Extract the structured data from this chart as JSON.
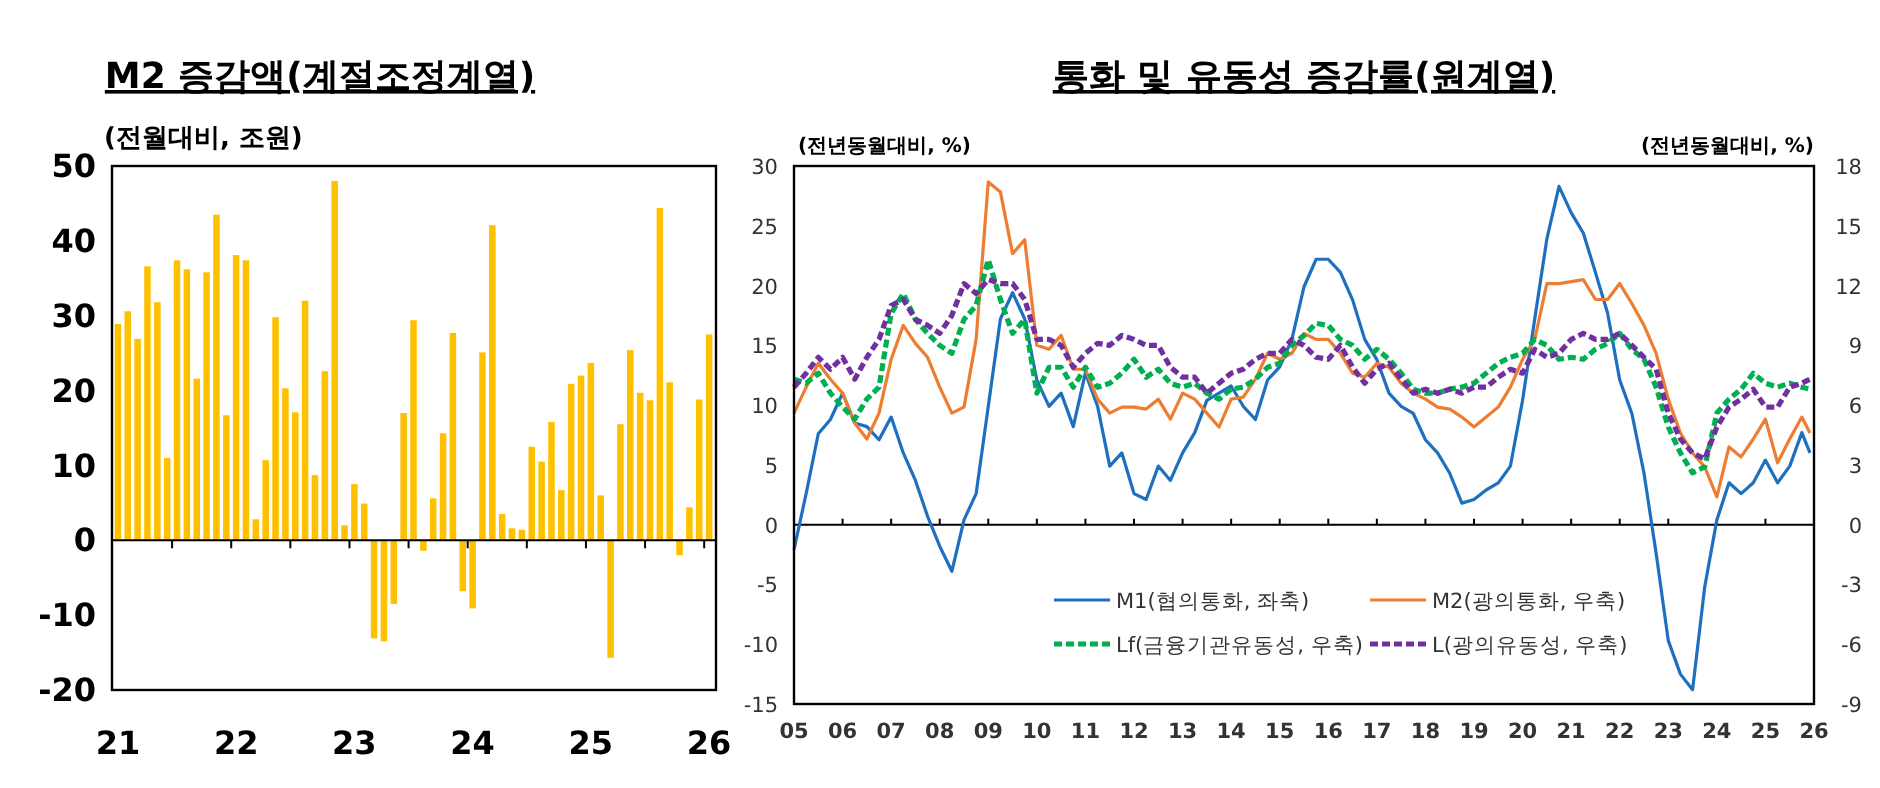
{
  "chart_data": [
    {
      "type": "bar",
      "title": "M2 증감액(계절조정계열)",
      "ylabel": "(전월대비, 조원)",
      "color": "#ffc000",
      "ylim": [
        -20,
        50
      ],
      "yticks": [
        -20,
        -10,
        0,
        10,
        20,
        30,
        40,
        50
      ],
      "categories": [
        "21",
        null,
        null,
        null,
        null,
        null,
        null,
        null,
        null,
        null,
        null,
        null,
        "22",
        null,
        null,
        null,
        null,
        null,
        null,
        null,
        null,
        null,
        null,
        null,
        "23",
        null,
        null,
        null,
        null,
        null,
        null,
        null,
        null,
        null,
        null,
        null,
        "24",
        null,
        null,
        null,
        null,
        null,
        null,
        null,
        null,
        null,
        null,
        null,
        "25",
        null,
        null,
        null,
        null,
        null,
        null,
        null,
        null,
        null,
        null,
        null,
        "26"
      ],
      "values": [
        28.9,
        30.6,
        26.9,
        36.6,
        31.8,
        11.0,
        37.4,
        36.2,
        21.6,
        35.8,
        43.5,
        16.7,
        38.1,
        37.4,
        2.8,
        10.7,
        29.8,
        20.3,
        17.1,
        32.0,
        8.7,
        22.6,
        48.0,
        2.0,
        7.5,
        4.9,
        -13.1,
        -13.5,
        -8.5,
        17.0,
        29.4,
        -1.4,
        5.6,
        14.3,
        27.7,
        -6.8,
        -9.1,
        25.1,
        42.1,
        3.5,
        1.6,
        1.4,
        12.5,
        10.5,
        15.8,
        6.7,
        20.9,
        22.0,
        23.7,
        6.0,
        -15.7,
        15.5,
        25.4,
        19.7,
        18.7,
        44.4,
        21.1,
        -2.0,
        4.4,
        18.8,
        27.5
      ]
    },
    {
      "type": "line",
      "title": "통화 및 유동성 증감률(원계열)",
      "ylabel": "(전년동월대비, %)",
      "y2label": "(전년동월대비, %)",
      "legend": "bottom",
      "xlim": [
        "2005-01",
        "2026-01"
      ],
      "xticks": [
        {
          "value": "2005-01",
          "label": "05"
        },
        {
          "value": "2006-01",
          "label": "06"
        },
        {
          "value": "2007-01",
          "label": "07"
        },
        {
          "value": "2008-01",
          "label": "08"
        },
        {
          "value": "2009-01",
          "label": "09"
        },
        {
          "value": "2010-01",
          "label": "10"
        },
        {
          "value": "2011-01",
          "label": "11"
        },
        {
          "value": "2012-01",
          "label": "12"
        },
        {
          "value": "2013-01",
          "label": "13"
        },
        {
          "value": "2014-01",
          "label": "14"
        },
        {
          "value": "2015-01",
          "label": "15"
        },
        {
          "value": "2016-01",
          "label": "16"
        },
        {
          "value": "2017-01",
          "label": "17"
        },
        {
          "value": "2018-01",
          "label": "18"
        },
        {
          "value": "2019-01",
          "label": "19"
        },
        {
          "value": "2020-01",
          "label": "20"
        },
        {
          "value": "2021-01",
          "label": "21"
        },
        {
          "value": "2022-01",
          "label": "22"
        },
        {
          "value": "2023-01",
          "label": "23"
        },
        {
          "value": "2024-01",
          "label": "24"
        },
        {
          "value": "2025-01",
          "label": "25"
        },
        {
          "value": "2026-01",
          "label": "26"
        }
      ],
      "ylim": [
        -15,
        30
      ],
      "yticks": [
        -15,
        -10,
        -5,
        0,
        5,
        10,
        15,
        20,
        25,
        30
      ],
      "y2lim": [
        -9,
        18
      ],
      "y2ticks": [
        -9,
        -6,
        -3,
        0,
        3,
        6,
        9,
        12,
        15,
        18
      ],
      "x": [
        "2005-01",
        "2005-04",
        "2005-07",
        "2005-10",
        "2006-01",
        "2006-04",
        "2006-07",
        "2006-10",
        "2007-01",
        "2007-04",
        "2007-07",
        "2007-10",
        "2008-01",
        "2008-04",
        "2008-07",
        "2008-10",
        "2009-01",
        "2009-04",
        "2009-07",
        "2009-10",
        "2010-01",
        "2010-04",
        "2010-07",
        "2010-10",
        "2011-01",
        "2011-04",
        "2011-07",
        "2011-10",
        "2012-01",
        "2012-04",
        "2012-07",
        "2012-10",
        "2013-01",
        "2013-04",
        "2013-07",
        "2013-10",
        "2014-01",
        "2014-04",
        "2014-07",
        "2014-10",
        "2015-01",
        "2015-04",
        "2015-07",
        "2015-10",
        "2016-01",
        "2016-04",
        "2016-07",
        "2016-10",
        "2017-01",
        "2017-04",
        "2017-07",
        "2017-10",
        "2018-01",
        "2018-04",
        "2018-07",
        "2018-10",
        "2019-01",
        "2019-04",
        "2019-07",
        "2019-10",
        "2020-01",
        "2020-04",
        "2020-07",
        "2020-10",
        "2021-01",
        "2021-04",
        "2021-07",
        "2021-10",
        "2022-01",
        "2022-04",
        "2022-07",
        "2022-10",
        "2023-01",
        "2023-04",
        "2023-07",
        "2023-10",
        "2024-01",
        "2024-04",
        "2024-07",
        "2024-10",
        "2025-01",
        "2025-04",
        "2025-07",
        "2025-10",
        "2025-12"
      ],
      "series": [
        {
          "name": "M1(협의통화, 좌축)",
          "color": "#1f6fc0",
          "axis": "y",
          "line_style": "solid",
          "values": [
            -2.1,
            2.6,
            7.6,
            8.8,
            11,
            8.5,
            8.2,
            7.1,
            9.0,
            6.0,
            3.7,
            0.7,
            -1.8,
            -3.9,
            0.4,
            2.6,
            9.9,
            17.2,
            19.4,
            17.2,
            12.1,
            9.9,
            11.0,
            8.2,
            12.7,
            9.9,
            4.9,
            6.0,
            2.6,
            2.1,
            4.9,
            3.7,
            6.0,
            7.7,
            10.4,
            11.0,
            11.6,
            9.9,
            8.8,
            12.1,
            13.2,
            15.5,
            19.9,
            22.2,
            22.2,
            21.1,
            18.8,
            15.5,
            13.8,
            11.0,
            9.9,
            9.3,
            7.1,
            6.0,
            4.3,
            1.8,
            2.1,
            2.9,
            3.5,
            4.9,
            10.4,
            17.2,
            23.9,
            28.3,
            26.1,
            24.4,
            21.1,
            17.7,
            12.1,
            9.3,
            4.3,
            -2.4,
            -9.7,
            -12.5,
            -13.8,
            -5.2,
            0.4,
            3.5,
            2.6,
            3.5,
            5.4,
            3.5,
            4.9,
            7.7,
            6.0
          ]
        },
        {
          "name": "M2(광의통화, 우축)",
          "color": "#ed7d31",
          "axis": "y2",
          "line_style": "solid",
          "values": [
            5.6,
            6.9,
            8.1,
            7.3,
            6.6,
            5.1,
            4.3,
            5.6,
            8.3,
            10.0,
            9.1,
            8.4,
            6.9,
            5.6,
            5.9,
            9.3,
            17.2,
            16.7,
            13.6,
            14.3,
            9.0,
            8.8,
            9.5,
            7.8,
            7.8,
            6.3,
            5.6,
            5.9,
            5.9,
            5.8,
            6.3,
            5.3,
            6.6,
            6.3,
            5.6,
            4.9,
            6.3,
            6.4,
            7.3,
            8.6,
            8.3,
            8.6,
            9.6,
            9.3,
            9.3,
            8.6,
            7.6,
            7.4,
            8.1,
            7.9,
            7.1,
            6.6,
            6.3,
            5.9,
            5.8,
            5.4,
            4.9,
            5.4,
            5.9,
            6.9,
            8.3,
            9.3,
            12.1,
            12.1,
            12.2,
            12.3,
            11.3,
            11.3,
            12.1,
            11.1,
            10.0,
            8.6,
            6.3,
            4.6,
            3.6,
            2.9,
            1.4,
            3.9,
            3.4,
            4.3,
            5.3,
            3.1,
            4.3,
            5.4,
            4.6
          ]
        },
        {
          "name": "Lf(금융기관유동성, 우축)",
          "color": "#00b050",
          "axis": "y2",
          "line_style": "dashed",
          "values": [
            7.3,
            7.1,
            7.6,
            6.6,
            5.9,
            5.3,
            6.3,
            6.9,
            10.6,
            11.6,
            10.3,
            9.6,
            9.0,
            8.6,
            10.3,
            11.0,
            13.3,
            11.3,
            9.6,
            10.3,
            6.6,
            7.9,
            7.9,
            6.9,
            7.9,
            6.9,
            7.1,
            7.6,
            8.3,
            7.4,
            7.8,
            7.1,
            6.9,
            7.1,
            6.6,
            6.3,
            6.8,
            6.9,
            7.3,
            7.9,
            8.1,
            9.0,
            9.5,
            10.1,
            10.0,
            9.3,
            9.0,
            8.3,
            8.8,
            8.3,
            7.6,
            6.8,
            6.6,
            6.6,
            6.8,
            6.9,
            7.1,
            7.6,
            8.1,
            8.4,
            8.6,
            9.3,
            9.0,
            8.3,
            8.4,
            8.3,
            8.8,
            9.1,
            9.6,
            8.8,
            8.3,
            6.9,
            4.9,
            3.6,
            2.6,
            2.9,
            5.6,
            6.3,
            6.8,
            7.6,
            7.1,
            6.9,
            7.1,
            6.9,
            6.8
          ]
        },
        {
          "name": "L(광의유동성, 우축)",
          "color": "#7030a0",
          "axis": "y2",
          "line_style": "dashed",
          "values": [
            6.9,
            7.6,
            8.4,
            7.8,
            8.4,
            7.3,
            8.4,
            9.3,
            11.0,
            11.3,
            10.3,
            10.0,
            9.6,
            10.5,
            12.1,
            11.6,
            12.3,
            12.1,
            12.1,
            11.3,
            9.3,
            9.3,
            9.0,
            7.9,
            8.6,
            9.1,
            9.0,
            9.5,
            9.3,
            9.0,
            9.0,
            7.9,
            7.4,
            7.4,
            6.6,
            7.1,
            7.6,
            7.8,
            8.3,
            8.6,
            8.6,
            9.3,
            9.0,
            8.4,
            8.3,
            9.0,
            7.9,
            7.1,
            7.8,
            8.1,
            7.3,
            6.6,
            6.8,
            6.6,
            6.8,
            6.6,
            6.9,
            6.9,
            7.4,
            7.8,
            7.6,
            8.8,
            8.4,
            8.6,
            9.3,
            9.6,
            9.3,
            9.3,
            9.6,
            9.0,
            8.4,
            7.8,
            5.6,
            4.3,
            3.6,
            3.3,
            4.9,
            5.9,
            6.3,
            6.8,
            5.9,
            5.9,
            6.9,
            7.1,
            7.3
          ]
        }
      ]
    }
  ]
}
